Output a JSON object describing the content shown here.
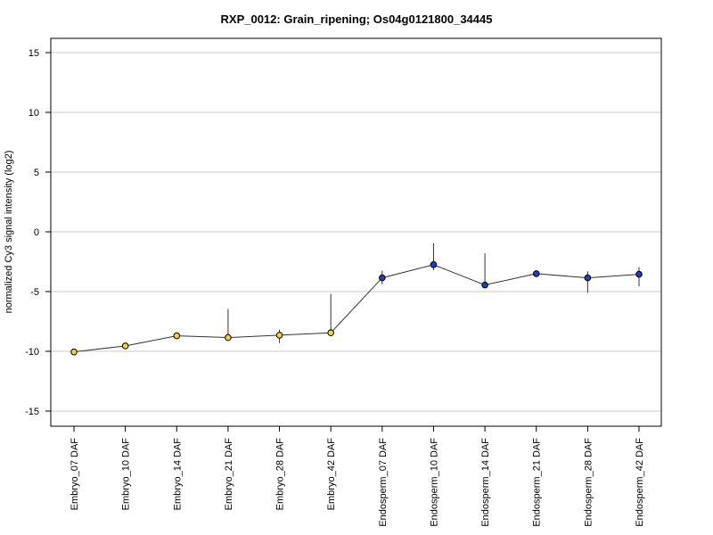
{
  "chart_data": {
    "type": "line",
    "title": "RXP_0012: Grain_ripening; Os04g0121800_34445",
    "xlabel": "",
    "ylabel": "normalized Cy3 signal intensity (log2)",
    "ylim": [
      -16,
      16.3
    ],
    "yticks": [
      15,
      10,
      5,
      0,
      -5,
      -10,
      -15
    ],
    "grid": true,
    "categories": [
      "Embryo_07 DAF",
      "Embryo_10 DAF",
      "Embryo_14 DAF",
      "Embryo_21 DAF",
      "Embryo_28 DAF",
      "Embryo_42 DAF",
      "Endosperm_07 DAF",
      "Endosperm_10 DAF",
      "Endosperm_14 DAF",
      "Endosperm_21 DAF",
      "Endosperm_28 DAF",
      "Endosperm_42 DAF"
    ],
    "values": [
      -10.05,
      -9.55,
      -8.7,
      -8.85,
      -8.65,
      -8.45,
      -3.85,
      -2.75,
      -4.45,
      -3.5,
      -3.85,
      -3.55
    ],
    "error_low": [
      -10.05,
      -9.55,
      -8.7,
      -8.85,
      -9.3,
      -8.45,
      -4.4,
      -3.2,
      -4.45,
      -3.5,
      -5.1,
      -4.55
    ],
    "error_high": [
      -10.05,
      -9.55,
      -8.7,
      -6.45,
      -8.2,
      -5.2,
      -3.25,
      -0.95,
      -1.8,
      -3.5,
      -3.3,
      -2.95
    ],
    "point_colors": [
      "#f2d13a",
      "#f2d13a",
      "#f2d13a",
      "#f2d13a",
      "#f2d13a",
      "#f2d13a",
      "#1c3fc4",
      "#1c3fc4",
      "#1c3fc4",
      "#1c3fc4",
      "#1c3fc4",
      "#1c3fc4"
    ],
    "line_color": "#333333",
    "grid_color": "#c8c8c8"
  }
}
